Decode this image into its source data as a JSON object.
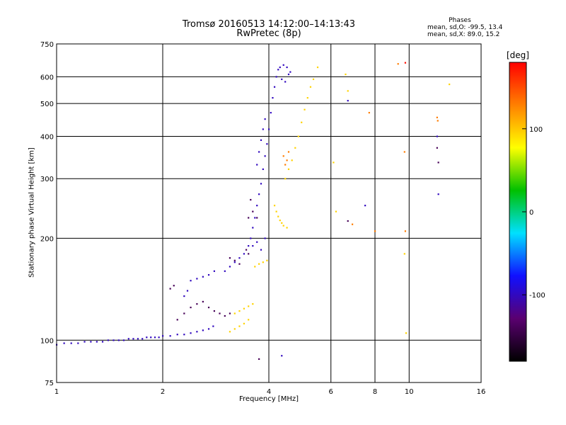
{
  "title_line1": "Tromsø 20160513 14:12:00–14:13:43",
  "title_line2": "RwPretec (8p)",
  "phases": {
    "heading": "Phases",
    "ordinary": "mean, sd,O: -99.5, 13.4",
    "extraordinary": "mean, sd,X:  89.0, 15.2"
  },
  "colorbar": {
    "unit": "[deg]",
    "ticks": [
      {
        "value": 100,
        "label": "100"
      },
      {
        "value": 0,
        "label": "0"
      },
      {
        "value": -100,
        "label": "-100"
      }
    ],
    "range": [
      -180,
      180
    ],
    "colors": [
      "#000000",
      "#5a0070",
      "#1010ff",
      "#00e0ff",
      "#00c000",
      "#ffff00",
      "#ff8000",
      "#ff0000"
    ]
  },
  "chart_data": {
    "type": "scatter",
    "title": "Tromsø 20160513 14:12:00–14:13:43",
    "subtitle": "RwPretec (8p)",
    "xlabel": "Frequency [MHz]",
    "ylabel": "Stationary phase Virtual Height [km]",
    "xscale": "log",
    "yscale": "log",
    "xlim": [
      1,
      16
    ],
    "ylim": [
      75,
      750
    ],
    "xticks": [
      {
        "value": 1,
        "label": "1"
      },
      {
        "value": 2,
        "label": "2"
      },
      {
        "value": 4,
        "label": "4"
      },
      {
        "value": 6,
        "label": "6"
      },
      {
        "value": 8,
        "label": "8"
      },
      {
        "value": 10,
        "label": "10"
      },
      {
        "value": 16,
        "label": "16"
      }
    ],
    "yticks": [
      {
        "value": 75,
        "label": "75"
      },
      {
        "value": 100,
        "label": "100"
      },
      {
        "value": 200,
        "label": "200"
      },
      {
        "value": 300,
        "label": "300"
      },
      {
        "value": 400,
        "label": "400"
      },
      {
        "value": 500,
        "label": "500"
      },
      {
        "value": 600,
        "label": "600"
      },
      {
        "value": 750,
        "label": "750"
      }
    ],
    "grid": true,
    "color_variable": "phase [deg]",
    "series": [
      {
        "role": "ordinary",
        "color_phase": -100,
        "points": [
          [
            1.0,
            97
          ],
          [
            1.05,
            98
          ],
          [
            1.1,
            98
          ],
          [
            1.15,
            98
          ],
          [
            1.2,
            99
          ],
          [
            1.25,
            99
          ],
          [
            1.3,
            99
          ],
          [
            1.35,
            99
          ],
          [
            1.4,
            100
          ],
          [
            1.45,
            100
          ],
          [
            1.5,
            100
          ],
          [
            1.55,
            100
          ],
          [
            1.6,
            101
          ],
          [
            1.65,
            101
          ],
          [
            1.7,
            101
          ],
          [
            1.75,
            101
          ],
          [
            1.8,
            102
          ],
          [
            1.85,
            102
          ],
          [
            1.9,
            102
          ],
          [
            1.95,
            102
          ],
          [
            2.0,
            103
          ],
          [
            2.1,
            103
          ],
          [
            2.2,
            104
          ],
          [
            2.3,
            104
          ],
          [
            2.4,
            105
          ],
          [
            2.5,
            106
          ],
          [
            2.6,
            107
          ],
          [
            2.7,
            108
          ],
          [
            2.78,
            110
          ],
          [
            2.4,
            150
          ],
          [
            2.5,
            152
          ],
          [
            2.6,
            154
          ],
          [
            2.7,
            156
          ],
          [
            2.8,
            160
          ],
          [
            2.3,
            135
          ],
          [
            2.35,
            140
          ],
          [
            3.0,
            160
          ],
          [
            3.1,
            165
          ],
          [
            3.2,
            170
          ],
          [
            3.3,
            175
          ],
          [
            3.4,
            180
          ],
          [
            3.5,
            190
          ],
          [
            3.55,
            200
          ],
          [
            3.6,
            215
          ],
          [
            3.65,
            230
          ],
          [
            3.7,
            250
          ],
          [
            3.75,
            270
          ],
          [
            3.8,
            290
          ],
          [
            3.85,
            320
          ],
          [
            3.9,
            350
          ],
          [
            3.95,
            380
          ],
          [
            4.0,
            420
          ],
          [
            4.05,
            470
          ],
          [
            4.1,
            520
          ],
          [
            4.15,
            560
          ],
          [
            4.2,
            600
          ],
          [
            4.25,
            630
          ],
          [
            4.3,
            640
          ],
          [
            4.4,
            650
          ],
          [
            4.5,
            640
          ],
          [
            4.6,
            620
          ],
          [
            4.35,
            590
          ],
          [
            4.45,
            580
          ],
          [
            4.55,
            610
          ],
          [
            3.7,
            330
          ],
          [
            3.75,
            360
          ],
          [
            3.8,
            390
          ],
          [
            3.85,
            420
          ],
          [
            3.9,
            450
          ],
          [
            3.6,
            190
          ],
          [
            3.7,
            195
          ],
          [
            3.8,
            185
          ],
          [
            3.9,
            200
          ],
          [
            6.7,
            510
          ],
          [
            7.5,
            250
          ],
          [
            12.0,
            400
          ],
          [
            12.1,
            270
          ],
          [
            4.35,
            90
          ]
        ]
      },
      {
        "role": "ordinary-dark",
        "color_phase": -140,
        "points": [
          [
            2.2,
            115
          ],
          [
            2.3,
            120
          ],
          [
            2.4,
            125
          ],
          [
            2.5,
            128
          ],
          [
            2.6,
            130
          ],
          [
            2.7,
            125
          ],
          [
            2.8,
            122
          ],
          [
            2.9,
            120
          ],
          [
            3.0,
            118
          ],
          [
            3.1,
            120
          ],
          [
            2.1,
            142
          ],
          [
            2.15,
            145
          ],
          [
            3.1,
            175
          ],
          [
            3.2,
            172
          ],
          [
            3.3,
            168
          ],
          [
            3.5,
            230
          ],
          [
            3.6,
            240
          ],
          [
            3.7,
            230
          ],
          [
            3.55,
            260
          ],
          [
            3.45,
            185
          ],
          [
            3.5,
            180
          ],
          [
            6.7,
            225
          ],
          [
            12.0,
            370
          ],
          [
            12.1,
            335
          ],
          [
            3.75,
            88
          ]
        ]
      },
      {
        "role": "extraordinary",
        "color_phase": 95,
        "points": [
          [
            3.1,
            106
          ],
          [
            3.2,
            108
          ],
          [
            3.3,
            110
          ],
          [
            3.4,
            112
          ],
          [
            3.5,
            115
          ],
          [
            3.2,
            120
          ],
          [
            3.3,
            122
          ],
          [
            3.4,
            124
          ],
          [
            3.5,
            126
          ],
          [
            3.6,
            128
          ],
          [
            3.65,
            165
          ],
          [
            3.75,
            168
          ],
          [
            3.85,
            170
          ],
          [
            3.95,
            172
          ],
          [
            4.15,
            250
          ],
          [
            4.2,
            240
          ],
          [
            4.25,
            232
          ],
          [
            4.3,
            226
          ],
          [
            4.35,
            222
          ],
          [
            4.4,
            218
          ],
          [
            4.5,
            215
          ],
          [
            4.45,
            300
          ],
          [
            4.55,
            320
          ],
          [
            4.65,
            340
          ],
          [
            4.75,
            370
          ],
          [
            4.85,
            400
          ],
          [
            4.95,
            440
          ],
          [
            5.05,
            480
          ],
          [
            5.15,
            520
          ],
          [
            5.25,
            560
          ],
          [
            5.35,
            590
          ],
          [
            5.5,
            640
          ],
          [
            6.1,
            335
          ],
          [
            6.2,
            240
          ],
          [
            6.6,
            610
          ],
          [
            6.7,
            545
          ],
          [
            9.7,
            180
          ],
          [
            9.8,
            105
          ],
          [
            13.0,
            570
          ]
        ]
      },
      {
        "role": "extraordinary-orange",
        "color_phase": 130,
        "points": [
          [
            4.4,
            350
          ],
          [
            4.5,
            340
          ],
          [
            4.55,
            360
          ],
          [
            4.45,
            330
          ],
          [
            6.9,
            220
          ],
          [
            7.7,
            470
          ],
          [
            8.0,
            210
          ],
          [
            9.7,
            360
          ],
          [
            9.75,
            210
          ],
          [
            12.0,
            455
          ],
          [
            12.05,
            445
          ],
          [
            9.3,
            655
          ]
        ]
      },
      {
        "role": "red",
        "color_phase": 175,
        "points": [
          [
            9.75,
            660
          ]
        ]
      }
    ]
  }
}
